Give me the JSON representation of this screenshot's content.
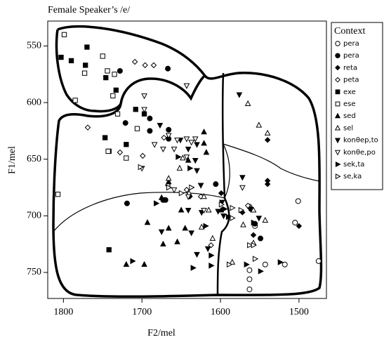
{
  "chart_data": {
    "type": "scatter",
    "title": "Female Speaker’s /e/",
    "x_label": "F2/mel",
    "y_label": "F1/mel",
    "xlim": [
      1820,
      1465
    ],
    "ylim": [
      528,
      773
    ],
    "xticks": [
      1800,
      1700,
      1600,
      1500
    ],
    "yticks": [
      550,
      600,
      650,
      700,
      750
    ],
    "legend_title": "Context",
    "legend": "right",
    "series": [
      {
        "name": "pera",
        "color": "#000000",
        "marker": "circle",
        "filled": false,
        "x": [
          1563,
          1501,
          1505,
          1518,
          1543,
          1563,
          1563,
          1563,
          1475,
          1556
        ],
        "values": [
          692,
          687,
          706,
          743,
          743,
          748,
          756,
          765,
          740,
          709
        ]
      },
      {
        "name": "pera",
        "color": "#000000",
        "marker": "circle",
        "filled": true,
        "x": [
          1728,
          1667,
          1721,
          1690,
          1690,
          1666,
          1666,
          1719,
          1673,
          1670,
          1606,
          1561,
          1556,
          1549
        ],
        "values": [
          572,
          570,
          618,
          614,
          625,
          624,
          632,
          689,
          686,
          686,
          672,
          694,
          707,
          720
        ]
      },
      {
        "name": "reta",
        "color": "#000000",
        "marker": "diamond",
        "filled": true,
        "x": [
          1540,
          1540,
          1540,
          1572,
          1500,
          1558,
          1599,
          1639
        ],
        "values": [
          633,
          669,
          672,
          697,
          709,
          717,
          680,
          683
        ]
      },
      {
        "name": "peta",
        "color": "#000000",
        "marker": "diamond",
        "filled": false,
        "x": [
          1709,
          1696,
          1685,
          1769,
          1728,
          1699,
          1672,
          1667,
          1643,
          1625,
          1565,
          1612
        ],
        "values": [
          564,
          567,
          567,
          622,
          644,
          647,
          631,
          673,
          677,
          683,
          691,
          726
        ]
      },
      {
        "name": "exe",
        "color": "#000000",
        "marker": "square",
        "filled": true,
        "x": [
          1803,
          1790,
          1770,
          1772,
          1746,
          1733,
          1708,
          1697,
          1747,
          1742,
          1720,
          1742
        ],
        "values": [
          560,
          563,
          551,
          567,
          578,
          589,
          606,
          610,
          631,
          643,
          637,
          730
        ]
      },
      {
        "name": "ese",
        "color": "#000000",
        "marker": "square",
        "filled": false,
        "x": [
          1799,
          1750,
          1744,
          1773,
          1735,
          1737,
          1731,
          1785,
          1706,
          1743,
          1720,
          1807
        ],
        "values": [
          540,
          559,
          572,
          574,
          575,
          594,
          610,
          598,
          623,
          643,
          649,
          681
        ]
      },
      {
        "name": "sed",
        "color": "#000000",
        "marker": "triangle-up",
        "filled": true,
        "x": [
          1621,
          1621,
          1618,
          1641,
          1666,
          1675,
          1650,
          1645,
          1666,
          1693,
          1673,
          1655,
          1720,
          1697,
          1599
        ],
        "values": [
          626,
          636,
          644,
          651,
          670,
          684,
          695,
          711,
          711,
          706,
          725,
          723,
          743,
          743,
          695
        ]
      },
      {
        "name": "sel",
        "color": "#000000",
        "marker": "triangle-up",
        "filled": false,
        "x": [
          1565,
          1551,
          1540,
          1648,
          1652,
          1666,
          1640,
          1621,
          1615,
          1558,
          1543,
          1571,
          1624,
          1610,
          1585,
          1558
        ],
        "values": [
          601,
          620,
          627,
          649,
          658,
          667,
          680,
          683,
          695,
          695,
          704,
          708,
          710,
          720,
          741,
          724
        ]
      },
      {
        "name": "konθep,to",
        "color": "#000000",
        "marker": "triangle-down",
        "filled": true,
        "x": [
          1576,
          1677,
          1651,
          1641,
          1630,
          1632,
          1630,
          1572,
          1625,
          1641,
          1624,
          1603,
          1596,
          1598,
          1675,
          1637,
          1630,
          1616,
          1551
        ],
        "values": [
          593,
          620,
          633,
          641,
          637,
          651,
          660,
          666,
          673,
          695,
          697,
          696,
          700,
          688,
          714,
          715,
          734,
          729,
          702
        ]
      },
      {
        "name": "konθe,po",
        "color": "#000000",
        "marker": "triangle-down",
        "filled": false,
        "x": [
          1643,
          1697,
          1697,
          1666,
          1673,
          1684,
          1659,
          1655,
          1643,
          1637,
          1632,
          1643,
          1700,
          1659,
          1641,
          1621,
          1572
        ],
        "values": [
          585,
          594,
          606,
          629,
          641,
          637,
          641,
          633,
          632,
          635,
          632,
          648,
          658,
          677,
          683,
          695,
          675
        ]
      },
      {
        "name": "sek,ta",
        "color": "#000000",
        "marker": "triangle-right",
        "filled": true,
        "x": [
          1654,
          1639,
          1682,
          1619,
          1595,
          1590,
          1612,
          1635,
          1612,
          1567,
          1549,
          1524,
          1712,
          1558
        ],
        "values": [
          648,
          658,
          689,
          709,
          694,
          701,
          735,
          746,
          744,
          743,
          749,
          741,
          740,
          706
        ]
      },
      {
        "name": "se,ka",
        "color": "#000000",
        "marker": "triangle-right",
        "filled": false,
        "x": [
          1702,
          1666,
          1650,
          1637,
          1599,
          1585,
          1574,
          1563,
          1589,
          1556,
          1558,
          1585
        ],
        "values": [
          657,
          675,
          680,
          675,
          690,
          693,
          695,
          726,
          743,
          738,
          726,
          702
        ]
      }
    ]
  }
}
